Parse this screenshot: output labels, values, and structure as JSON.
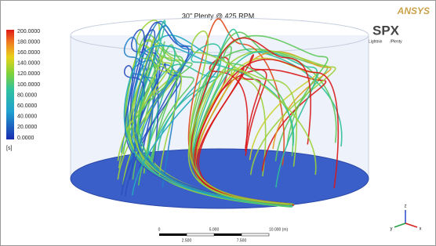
{
  "header": {
    "title": "30\" Plenty @ 425 RPM",
    "brand": "ANSYS",
    "logo": "SPX",
    "logo_sub": [
      "/Lightnin",
      "/Plenty"
    ]
  },
  "legend": {
    "labels": [
      "200.0000",
      "180.0000",
      "160.0000",
      "140.0000",
      "120.0000",
      "100.0000",
      "80.0000",
      "60.0000",
      "40.0000",
      "20.0000",
      "0.0000"
    ],
    "unit": "[s]"
  },
  "scale_bar": {
    "top": [
      "0",
      "5.000",
      "10.000 (m)"
    ],
    "bottom": [
      "2.500",
      "7.500"
    ]
  },
  "triad": [
    "x",
    "y",
    "z"
  ]
}
